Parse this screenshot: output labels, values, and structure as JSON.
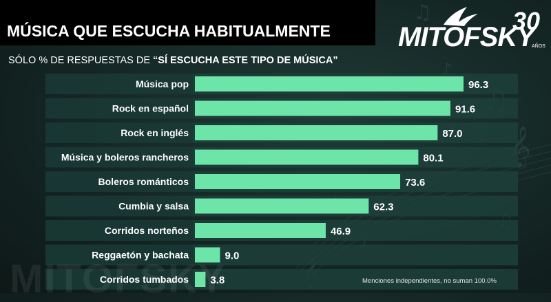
{
  "header": {
    "title": "MÚSICA QUE ESCUCHA HABITUALMENTE",
    "subtitle_prefix": "SÓLO % DE RESPUESTAS DE ",
    "subtitle_emph": "“SÍ ESCUCHA ESTE TIPO DE MÚSICA”"
  },
  "logo": {
    "text": "MITOFSKY",
    "anniversary": "30",
    "anos": "AÑOS"
  },
  "watermark": "MITOFSKY",
  "note": "Menciones independientes, no suman 100.0%",
  "colors": {
    "bar": "#6de4a8",
    "row_bg": "#1d3f3b",
    "label_bg": "#173330",
    "background": "#142624"
  },
  "chart_data": {
    "type": "bar",
    "orientation": "horizontal",
    "categories": [
      "Música pop",
      "Rock en español",
      "Rock en inglés",
      "Música y boleros rancheros",
      "Boleros románticos",
      "Cumbia y salsa",
      "Corridos norteños",
      "Reggaetón y bachata",
      "Corridos tumbados"
    ],
    "values": [
      96.3,
      91.6,
      87.0,
      80.1,
      73.6,
      62.3,
      46.9,
      9.0,
      3.8
    ],
    "value_labels": [
      "96.3",
      "91.6",
      "87.0",
      "80.1",
      "73.6",
      "62.3",
      "46.9",
      "9.0",
      "3.8"
    ],
    "xlim": [
      0,
      100
    ],
    "grid": false,
    "legend": "none"
  }
}
